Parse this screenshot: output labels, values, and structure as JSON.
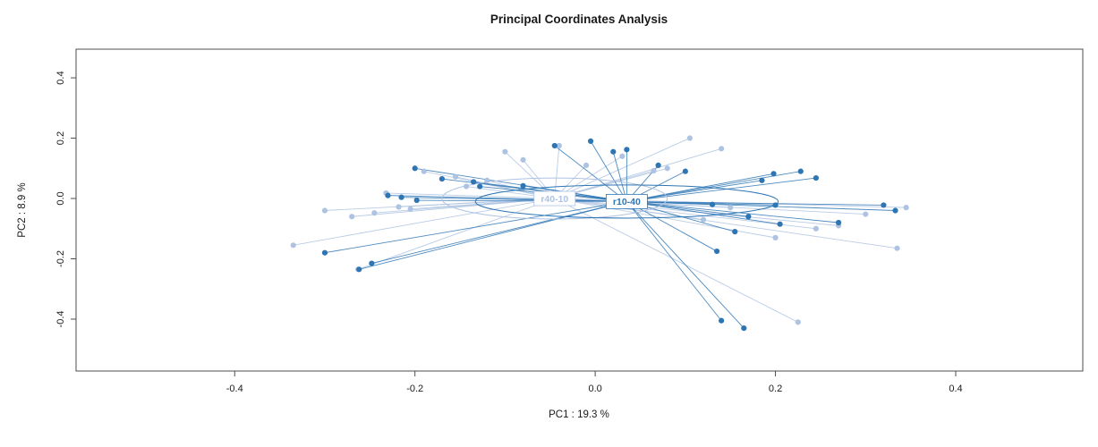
{
  "chart_data": {
    "type": "scatter",
    "title": "Principal Coordinates Analysis",
    "xlabel": "PC1 :  19.3 %",
    "ylabel": "PC2 :  8.9 %",
    "xticks": [
      -0.4,
      -0.2,
      0.0,
      0.2,
      0.4
    ],
    "yticks": [
      -0.4,
      -0.2,
      0.0,
      0.2,
      0.4
    ],
    "xlim": [
      -0.576,
      0.541
    ],
    "ylim": [
      -0.572,
      0.495
    ],
    "legend_position": "none",
    "grid": false,
    "groups": [
      {
        "name": "r40-10",
        "color": "#aec3e2",
        "centroid": [
          -0.045,
          0.0
        ],
        "ellipse": {
          "rx": 0.125,
          "ry": 0.068
        },
        "points": [
          [
            -0.335,
            -0.155
          ],
          [
            -0.3,
            -0.04
          ],
          [
            -0.27,
            -0.06
          ],
          [
            -0.263,
            -0.235
          ],
          [
            -0.245,
            -0.048
          ],
          [
            -0.232,
            0.018
          ],
          [
            -0.218,
            -0.028
          ],
          [
            -0.205,
            -0.035
          ],
          [
            -0.19,
            0.09
          ],
          [
            -0.155,
            0.072
          ],
          [
            -0.143,
            0.04
          ],
          [
            -0.12,
            0.06
          ],
          [
            -0.1,
            0.155
          ],
          [
            -0.08,
            0.128
          ],
          [
            -0.04,
            0.175
          ],
          [
            -0.01,
            0.11
          ],
          [
            0.03,
            0.14
          ],
          [
            0.065,
            0.092
          ],
          [
            0.08,
            0.1
          ],
          [
            0.105,
            0.2
          ],
          [
            0.14,
            0.165
          ],
          [
            0.12,
            -0.07
          ],
          [
            0.15,
            -0.03
          ],
          [
            0.2,
            -0.13
          ],
          [
            0.225,
            -0.41
          ],
          [
            0.245,
            -0.1
          ],
          [
            0.27,
            -0.09
          ],
          [
            0.3,
            -0.052
          ],
          [
            0.335,
            -0.165
          ],
          [
            0.345,
            -0.03
          ]
        ]
      },
      {
        "name": "r10-40",
        "color": "#2e75b4",
        "centroid": [
          0.035,
          -0.01
        ],
        "ellipse": {
          "rx": 0.168,
          "ry": 0.055
        },
        "points": [
          [
            -0.3,
            -0.18
          ],
          [
            -0.262,
            -0.235
          ],
          [
            -0.248,
            -0.215
          ],
          [
            -0.23,
            0.01
          ],
          [
            -0.215,
            0.004
          ],
          [
            -0.2,
            0.1
          ],
          [
            -0.198,
            -0.006
          ],
          [
            -0.17,
            0.065
          ],
          [
            -0.135,
            0.055
          ],
          [
            -0.128,
            0.04
          ],
          [
            -0.08,
            0.042
          ],
          [
            -0.045,
            0.175
          ],
          [
            -0.005,
            0.19
          ],
          [
            0.02,
            0.155
          ],
          [
            0.035,
            0.162
          ],
          [
            0.07,
            0.11
          ],
          [
            0.1,
            0.09
          ],
          [
            0.13,
            -0.02
          ],
          [
            0.135,
            -0.175
          ],
          [
            0.14,
            -0.405
          ],
          [
            0.165,
            -0.43
          ],
          [
            0.155,
            -0.11
          ],
          [
            0.17,
            -0.06
          ],
          [
            0.185,
            0.06
          ],
          [
            0.198,
            0.082
          ],
          [
            0.2,
            -0.022
          ],
          [
            0.205,
            -0.085
          ],
          [
            0.228,
            0.09
          ],
          [
            0.245,
            0.068
          ],
          [
            0.27,
            -0.08
          ],
          [
            0.32,
            -0.022
          ],
          [
            0.333,
            -0.04
          ]
        ]
      }
    ]
  }
}
